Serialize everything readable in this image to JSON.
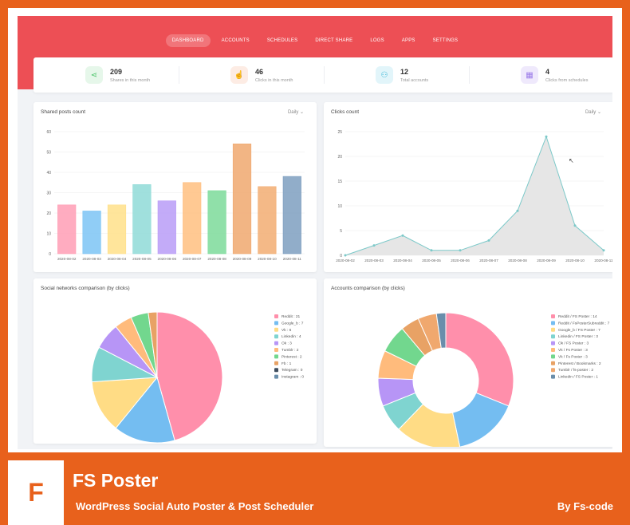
{
  "nav": {
    "items": [
      "DASHBOARD",
      "ACCOUNTS",
      "SCHEDULES",
      "DIRECT SHARE",
      "LOGS",
      "APPS",
      "SETTINGS"
    ],
    "active_index": 0
  },
  "stats": [
    {
      "value": "209",
      "label": "Shares in this month",
      "icon": "share-icon",
      "glyph": "⋖",
      "color": "#4cc46a",
      "bg": "#e6f7ea"
    },
    {
      "value": "46",
      "label": "Clicks in this month",
      "icon": "pointer-icon",
      "glyph": "☝",
      "color": "#f08a5d",
      "bg": "#fdece4"
    },
    {
      "value": "12",
      "label": "Total accounts",
      "icon": "users-icon",
      "glyph": "⚇",
      "color": "#38b6d6",
      "bg": "#e2f5fa"
    },
    {
      "value": "4",
      "label": "Clicks from schedules",
      "icon": "calendar-icon",
      "glyph": "▦",
      "color": "#9b7be8",
      "bg": "#efe9fc"
    }
  ],
  "shared_posts": {
    "title": "Shared posts count",
    "filter": "Daily"
  },
  "clicks": {
    "title": "Clicks count",
    "filter": "Daily"
  },
  "social": {
    "title": "Social networks comparison (by clicks)"
  },
  "accounts": {
    "title": "Accounts comparison (by clicks)"
  },
  "chart_data": [
    {
      "type": "bar",
      "categories": [
        "2020-08-02",
        "2020-08-03",
        "2020-08-04",
        "2020-08-05",
        "2020-08-06",
        "2020-08-07",
        "2020-08-08",
        "2020-08-09",
        "2020-08-10",
        "2020-08-11"
      ],
      "values": [
        24,
        21,
        24,
        34,
        26,
        35,
        31,
        54,
        33,
        38
      ],
      "colors": [
        "#ff9eb5",
        "#7cc4f4",
        "#ffe08a",
        "#8fdad7",
        "#b99cf7",
        "#ffbf80",
        "#7ddb9a",
        "#f0a86e",
        "#f2ad72",
        "#7e9fc0"
      ],
      "ylim": [
        0,
        60
      ],
      "yticks": [
        0,
        10,
        20,
        30,
        40,
        50,
        60
      ],
      "grid": true
    },
    {
      "type": "area",
      "x": [
        "2020-08-02",
        "2020-08-03",
        "2020-08-04",
        "2020-08-05",
        "2020-08-06",
        "2020-08-07",
        "2020-08-08",
        "2020-08-09",
        "2020-08-10",
        "2020-08-11"
      ],
      "values": [
        0,
        2,
        4,
        1,
        1,
        3,
        9,
        24,
        6,
        1
      ],
      "ylim": [
        0,
        25
      ],
      "yticks": [
        0,
        5,
        10,
        15,
        20,
        25
      ],
      "line_color": "#7cc9c9",
      "fill_color": "#e3e3e3",
      "grid": true
    },
    {
      "type": "pie",
      "labels": [
        "Reddit : 21",
        "Google_b : 7",
        "Vk : 6",
        "Linkedin : 4",
        "Ok : 3",
        "Tumblr : 2",
        "Pinterest : 2",
        "Fb : 1",
        "Telegram : 0",
        "Instagram : 0"
      ],
      "values": [
        21,
        7,
        6,
        4,
        3,
        2,
        2,
        1,
        0,
        0
      ],
      "colors": [
        "#ff8fab",
        "#74bdf1",
        "#ffdc85",
        "#7fd4d0",
        "#b795f6",
        "#ffbb7c",
        "#72d78e",
        "#e8a265",
        "#3f4d5e",
        "#6a8eab"
      ],
      "legend": "right"
    },
    {
      "type": "pie",
      "labels": [
        "Reddit / FS Poster : 14",
        "Reddit / FsPosterSubreddit : 7",
        "Google_b / FS Poster : 7",
        "Linkedin / FS Poster : 3",
        "Ok / FS Poster : 3",
        "Vk / Fs Poster : 3",
        "Vk / Fs Poster : 3",
        "Pinterest / Bookmarks : 2",
        "Tumblr / fs-poster : 2",
        "Linkedin / FS Poster : 1"
      ],
      "values": [
        14,
        7,
        7,
        3,
        3,
        3,
        3,
        2,
        2,
        1
      ],
      "colors": [
        "#ff8fab",
        "#74bdf1",
        "#ffdc85",
        "#7fd4d0",
        "#b795f6",
        "#ffbb7c",
        "#72d78e",
        "#e8a265",
        "#f0a86e",
        "#6a8eab"
      ],
      "legend": "right",
      "donut": true
    }
  ],
  "banner": {
    "logo_letter": "F",
    "title": "FS Poster",
    "subtitle": "WordPress Social Auto Poster & Post Scheduler",
    "author": "By Fs-code"
  }
}
